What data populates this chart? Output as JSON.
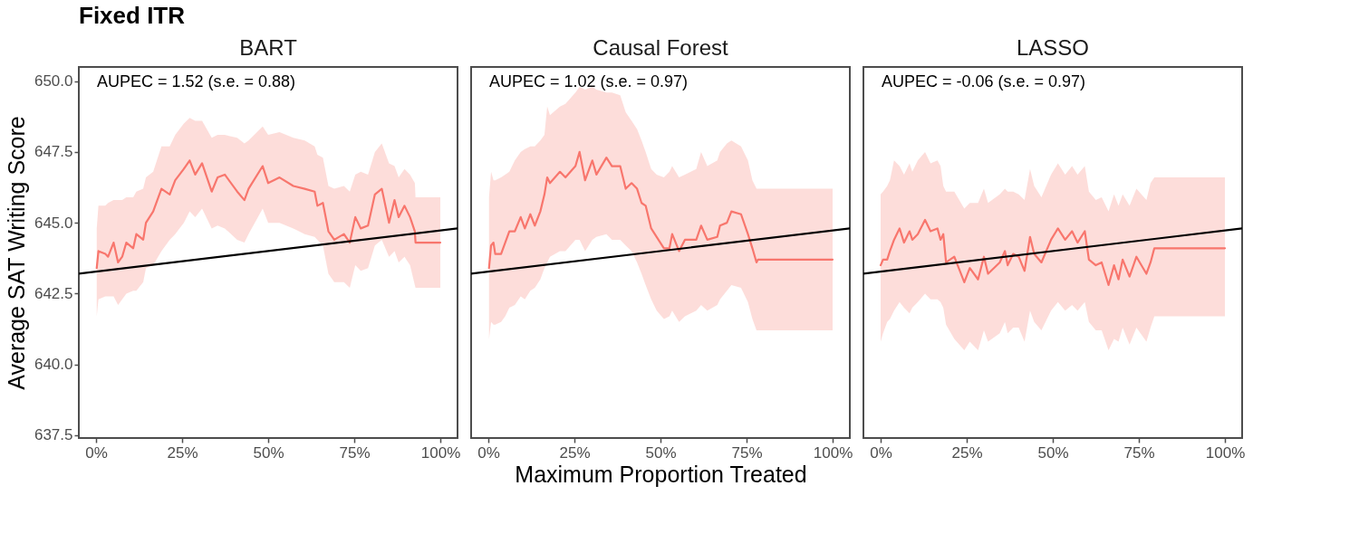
{
  "chart_data": [
    {
      "type": "line",
      "title": "Fixed ITR",
      "subtitle": "BART",
      "ylabel": "Average SAT Writing Score",
      "annotations": [
        "AUPEC = 1.52 (s.e. = 0.88)"
      ],
      "xlim": [
        -5,
        105
      ],
      "xticks": [
        {
          "value": 0,
          "label": "0%"
        },
        {
          "value": 25,
          "label": "25%"
        },
        {
          "value": 50,
          "label": "50%"
        },
        {
          "value": 75,
          "label": "75%"
        },
        {
          "value": 100,
          "label": "100%"
        }
      ],
      "ylim": [
        637.4,
        650.5
      ],
      "yticks": [
        637.5,
        {
          "value": 640,
          "label": "640.0"
        },
        642.5,
        {
          "value": 645,
          "label": "645.0"
        },
        647.5,
        {
          "value": 650,
          "label": "650.0"
        }
      ],
      "series": [
        {
          "color": "#f8766d",
          "x": [
            0.2,
            0.7,
            2.7,
            3.5,
            5.1,
            6.4,
            7.6,
            8.8,
            10.8,
            11.7,
            13.7,
            14.5,
            16.6,
            19.0,
            21.4,
            23.0,
            25.5,
            27.2,
            28.8,
            30.8,
            33.6,
            35.3,
            37.4,
            41.0,
            43.1,
            44.3,
            48.4,
            50.0,
            53.3,
            57.3,
            60.6,
            63.5,
            64.3,
            65.9,
            67.5,
            69.2,
            72.0,
            73.7,
            75.3,
            76.9,
            79.0,
            81.0,
            83.0,
            85.1,
            86.7,
            87.9,
            89.6,
            91.2,
            92.6,
            92.8,
            100
          ],
          "values": [
            643.4,
            644.0,
            643.9,
            643.8,
            644.3,
            643.6,
            643.8,
            644.3,
            644.1,
            644.6,
            644.4,
            645.0,
            645.4,
            646.2,
            646.0,
            646.5,
            646.9,
            647.2,
            646.7,
            647.1,
            646.1,
            646.6,
            646.7,
            646.1,
            645.8,
            646.2,
            647.0,
            646.4,
            646.6,
            646.3,
            646.2,
            646.1,
            645.6,
            645.7,
            644.7,
            644.4,
            644.6,
            644.3,
            645.2,
            644.8,
            644.9,
            646.0,
            646.2,
            645.0,
            645.8,
            645.2,
            645.6,
            645.2,
            644.7,
            644.3,
            644.3
          ],
          "lower": [
            641.7,
            642.3,
            642.4,
            642.4,
            642.4,
            642.1,
            642.3,
            642.5,
            642.6,
            642.6,
            642.9,
            643.4,
            643.5,
            644.0,
            644.4,
            644.6,
            645.0,
            645.4,
            645.2,
            645.5,
            644.8,
            644.9,
            644.8,
            644.4,
            644.3,
            644.6,
            645.5,
            645.0,
            645.0,
            644.8,
            644.6,
            644.5,
            644.4,
            644.2,
            643.2,
            642.9,
            642.9,
            642.7,
            643.5,
            643.3,
            643.4,
            644.2,
            644.4,
            643.8,
            644.0,
            643.6,
            643.8,
            643.5,
            642.8,
            642.7,
            642.7
          ],
          "upper": [
            644.8,
            645.6,
            645.6,
            645.7,
            645.8,
            645.8,
            645.8,
            645.9,
            645.9,
            646.1,
            646.2,
            646.6,
            646.8,
            647.7,
            647.7,
            648.1,
            648.5,
            648.7,
            648.6,
            648.6,
            648.0,
            648.1,
            648.1,
            648.0,
            647.8,
            647.9,
            648.4,
            648.1,
            648.2,
            648.0,
            647.9,
            647.7,
            647.4,
            647.3,
            646.3,
            646.2,
            646.3,
            646.1,
            646.7,
            646.8,
            646.7,
            647.5,
            647.8,
            647.1,
            647.0,
            646.6,
            646.9,
            646.7,
            646.4,
            645.9,
            645.9
          ]
        },
        {
          "color": "#000000",
          "x": [
            -5,
            105
          ],
          "values": [
            643.2,
            644.8
          ]
        }
      ]
    },
    {
      "type": "line",
      "subtitle": "Causal Forest",
      "xlabel": "Maximum Proportion Treated",
      "annotations": [
        "AUPEC = 1.02 (s.e. = 0.97)"
      ],
      "tick_labels": "x",
      "xlim": [
        -5,
        105
      ],
      "xticks": [
        {
          "value": 0,
          "label": "0%"
        },
        {
          "value": 25,
          "label": "25%"
        },
        {
          "value": 50,
          "label": "50%"
        },
        {
          "value": 75,
          "label": "75%"
        },
        {
          "value": 100,
          "label": "100%"
        }
      ],
      "ylim": [
        637.4,
        650.5
      ],
      "series": [
        {
          "color": "#f8766d",
          "x": [
            0.2,
            0.8,
            1.5,
            2.0,
            3.7,
            4.9,
            6.1,
            7.7,
            9.4,
            10.6,
            12.2,
            13.5,
            15.1,
            16.3,
            17.1,
            17.9,
            20.8,
            22.4,
            25.3,
            26.5,
            28.1,
            30.2,
            31.4,
            34.3,
            35.9,
            38.3,
            39.9,
            41.6,
            43.2,
            44.5,
            45.7,
            47.3,
            48.9,
            51.0,
            52.6,
            53.4,
            55.4,
            57.1,
            60.4,
            61.8,
            63.6,
            66.5,
            67.3,
            69.3,
            70.6,
            73.4,
            75.4,
            76.7,
            77.9,
            78.3,
            100
          ],
          "values": [
            643.4,
            644.2,
            644.3,
            643.9,
            643.9,
            644.3,
            644.7,
            644.7,
            645.2,
            644.8,
            645.3,
            644.9,
            645.4,
            646.0,
            646.6,
            646.4,
            646.8,
            646.6,
            647.0,
            647.5,
            646.5,
            647.2,
            646.7,
            647.3,
            647.0,
            647.0,
            646.2,
            646.4,
            646.2,
            645.7,
            645.6,
            644.8,
            644.5,
            644.1,
            644.1,
            644.6,
            644.0,
            644.4,
            644.4,
            644.9,
            644.4,
            644.5,
            644.9,
            645.0,
            645.4,
            645.3,
            644.6,
            644.1,
            643.6,
            643.7,
            643.7
          ],
          "lower": [
            640.9,
            641.5,
            641.4,
            641.4,
            641.5,
            641.7,
            642.0,
            642.1,
            642.4,
            642.3,
            642.6,
            642.7,
            643.0,
            643.4,
            643.6,
            643.8,
            644.0,
            644.0,
            644.4,
            644.4,
            644.0,
            644.4,
            644.5,
            644.6,
            644.4,
            644.4,
            644.2,
            644.0,
            643.6,
            643.2,
            642.8,
            642.3,
            641.9,
            641.6,
            641.7,
            641.9,
            641.5,
            641.7,
            641.9,
            642.1,
            641.9,
            642.1,
            642.3,
            642.6,
            642.8,
            642.7,
            642.2,
            641.6,
            641.2,
            641.2,
            641.2
          ],
          "upper": [
            645.9,
            646.8,
            646.5,
            646.5,
            646.6,
            646.7,
            646.8,
            647.2,
            647.5,
            647.6,
            647.7,
            647.7,
            647.9,
            648.1,
            649.1,
            648.8,
            649.1,
            649.2,
            649.6,
            649.8,
            649.7,
            649.8,
            649.7,
            649.6,
            649.6,
            649.5,
            648.9,
            648.6,
            648.3,
            647.9,
            647.5,
            646.9,
            646.7,
            646.6,
            646.8,
            647.0,
            646.6,
            646.7,
            646.9,
            647.5,
            647.0,
            647.2,
            647.5,
            647.8,
            647.9,
            647.7,
            647.2,
            646.5,
            646.2,
            646.2,
            646.2
          ]
        },
        {
          "color": "#000000",
          "x": [
            -5,
            105
          ],
          "values": [
            643.2,
            644.8
          ]
        }
      ]
    },
    {
      "type": "line",
      "subtitle": "LASSO",
      "annotations": [
        "AUPEC = -0.06 (s.e. = 0.97)"
      ],
      "tick_labels": "x",
      "xlim": [
        -5,
        105
      ],
      "xticks": [
        {
          "value": 0,
          "label": "0%"
        },
        {
          "value": 25,
          "label": "25%"
        },
        {
          "value": 50,
          "label": "50%"
        },
        {
          "value": 75,
          "label": "75%"
        },
        {
          "value": 100,
          "label": "100%"
        }
      ],
      "ylim": [
        637.4,
        650.5
      ],
      "series": [
        {
          "color": "#f8766d",
          "x": [
            0,
            0.7,
            1.9,
            2.7,
            3.9,
            5.5,
            6.8,
            8.4,
            9.2,
            10.8,
            12.9,
            14.5,
            16.5,
            17.4,
            18.2,
            19.0,
            21.4,
            24.3,
            25.9,
            28.3,
            30.0,
            31.2,
            34.6,
            36.1,
            36.9,
            38.5,
            40.1,
            41.8,
            43.4,
            44.6,
            46.7,
            49.5,
            51.5,
            53.6,
            55.6,
            57.2,
            59.3,
            60.5,
            62.5,
            64.2,
            66.2,
            67.8,
            69.1,
            70.3,
            72.3,
            74.3,
            77.2,
            78.4,
            79.5,
            100
          ],
          "values": [
            643.5,
            643.7,
            643.7,
            644.0,
            644.4,
            644.8,
            644.3,
            644.7,
            644.4,
            644.6,
            645.1,
            644.7,
            644.8,
            644.4,
            644.6,
            643.6,
            643.8,
            642.9,
            643.4,
            643.0,
            643.8,
            643.2,
            643.6,
            644.0,
            643.5,
            643.9,
            643.8,
            643.3,
            644.5,
            643.9,
            643.6,
            644.4,
            644.8,
            644.4,
            644.7,
            644.3,
            644.7,
            643.7,
            643.5,
            643.6,
            642.8,
            643.5,
            643.0,
            643.7,
            643.1,
            643.8,
            643.2,
            643.6,
            644.1,
            644.1
          ],
          "lower": [
            640.8,
            641.1,
            641.5,
            641.6,
            641.9,
            642.2,
            642.0,
            641.8,
            642.0,
            642.2,
            642.5,
            642.3,
            642.3,
            642.2,
            642.0,
            641.4,
            640.9,
            640.5,
            640.8,
            640.5,
            641.2,
            640.8,
            641.1,
            641.5,
            641.1,
            641.3,
            641.3,
            640.8,
            641.9,
            641.5,
            641.2,
            641.9,
            642.2,
            641.9,
            642.1,
            641.9,
            642.2,
            641.5,
            641.2,
            641.2,
            640.5,
            640.9,
            640.8,
            641.3,
            640.7,
            641.3,
            640.8,
            641.3,
            641.7,
            641.7
          ],
          "upper": [
            646.0,
            646.1,
            646.3,
            646.5,
            647.2,
            647.0,
            646.7,
            647.1,
            646.8,
            647.2,
            647.5,
            647.1,
            647.2,
            647.0,
            646.3,
            646.1,
            646.1,
            645.5,
            645.7,
            645.7,
            646.2,
            645.7,
            646.0,
            646.2,
            646.1,
            646.1,
            646.0,
            645.8,
            646.9,
            646.3,
            645.9,
            646.7,
            647.1,
            646.7,
            647.0,
            646.7,
            647.0,
            646.1,
            645.8,
            645.9,
            645.4,
            646.0,
            645.6,
            646.0,
            645.6,
            646.2,
            645.8,
            646.4,
            646.6,
            646.6
          ]
        },
        {
          "color": "#000000",
          "x": [
            -5,
            105
          ],
          "values": [
            643.2,
            644.8
          ]
        }
      ]
    }
  ]
}
